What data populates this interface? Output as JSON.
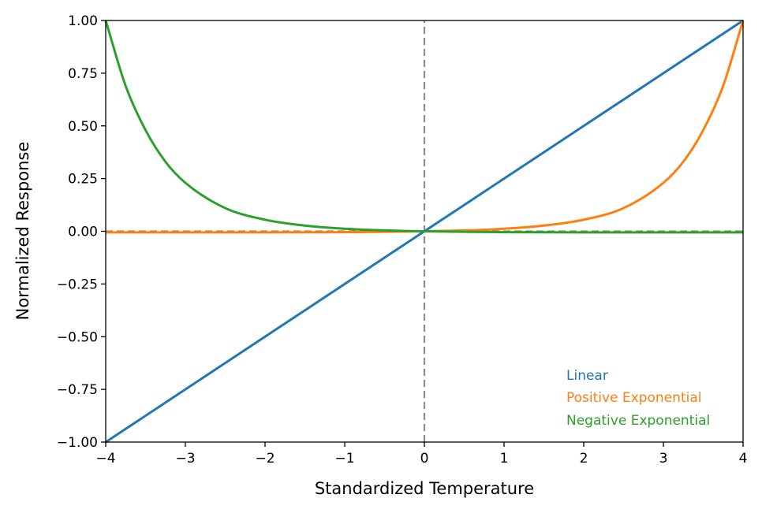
{
  "chart_data": {
    "type": "line",
    "title": "",
    "xlabel": "Standardized Temperature",
    "ylabel": "Normalized Response",
    "xlim": [
      -4,
      4
    ],
    "ylim": [
      -1,
      1
    ],
    "x_ticks": [
      -4,
      -3,
      -2,
      -1,
      0,
      1,
      2,
      3,
      4
    ],
    "x_tick_labels": [
      "−4",
      "−3",
      "−2",
      "−1",
      "0",
      "1",
      "2",
      "3",
      "4"
    ],
    "y_ticks": [
      -1,
      -0.75,
      -0.5,
      -0.25,
      0,
      0.25,
      0.5,
      0.75,
      1
    ],
    "y_tick_labels": [
      "−1.00",
      "−0.75",
      "−0.50",
      "−0.25",
      "0.00",
      "0.25",
      "0.50",
      "0.75",
      "1.00"
    ],
    "grid": false,
    "legend_position": "bottom-right",
    "reference_lines": [
      {
        "orientation": "horizontal",
        "value": 0,
        "style": "dashed",
        "color": "#8c8c8c"
      },
      {
        "orientation": "vertical",
        "value": 0,
        "style": "dashed",
        "color": "#8c8c8c"
      }
    ],
    "series": [
      {
        "name": "Linear",
        "color": "#1f77b4",
        "x": [
          -4,
          -3,
          -2,
          -1,
          0,
          1,
          2,
          3,
          4
        ],
        "y": [
          -1,
          -0.75,
          -0.5,
          -0.25,
          0,
          0.25,
          0.5,
          0.75,
          1
        ]
      },
      {
        "name": "Positive Exponential",
        "color": "#ff7f0e",
        "x": [
          -4,
          -3,
          -2,
          -1,
          0,
          0.5,
          1,
          1.5,
          2,
          2.5,
          3,
          3.25,
          3.5,
          3.75,
          4
        ],
        "y": [
          -0.005,
          -0.005,
          -0.005,
          -0.004,
          0,
          0.004,
          0.012,
          0.027,
          0.055,
          0.11,
          0.23,
          0.33,
          0.48,
          0.69,
          1.0
        ]
      },
      {
        "name": "Negative Exponential",
        "color": "#2ca02c",
        "x": [
          -4,
          -3.75,
          -3.5,
          -3.25,
          -3,
          -2.5,
          -2,
          -1.5,
          -1,
          -0.5,
          0,
          1,
          2,
          3,
          4
        ],
        "y": [
          1.0,
          0.69,
          0.48,
          0.33,
          0.23,
          0.11,
          0.055,
          0.027,
          0.012,
          0.004,
          0,
          -0.004,
          -0.005,
          -0.005,
          -0.005
        ]
      }
    ]
  }
}
